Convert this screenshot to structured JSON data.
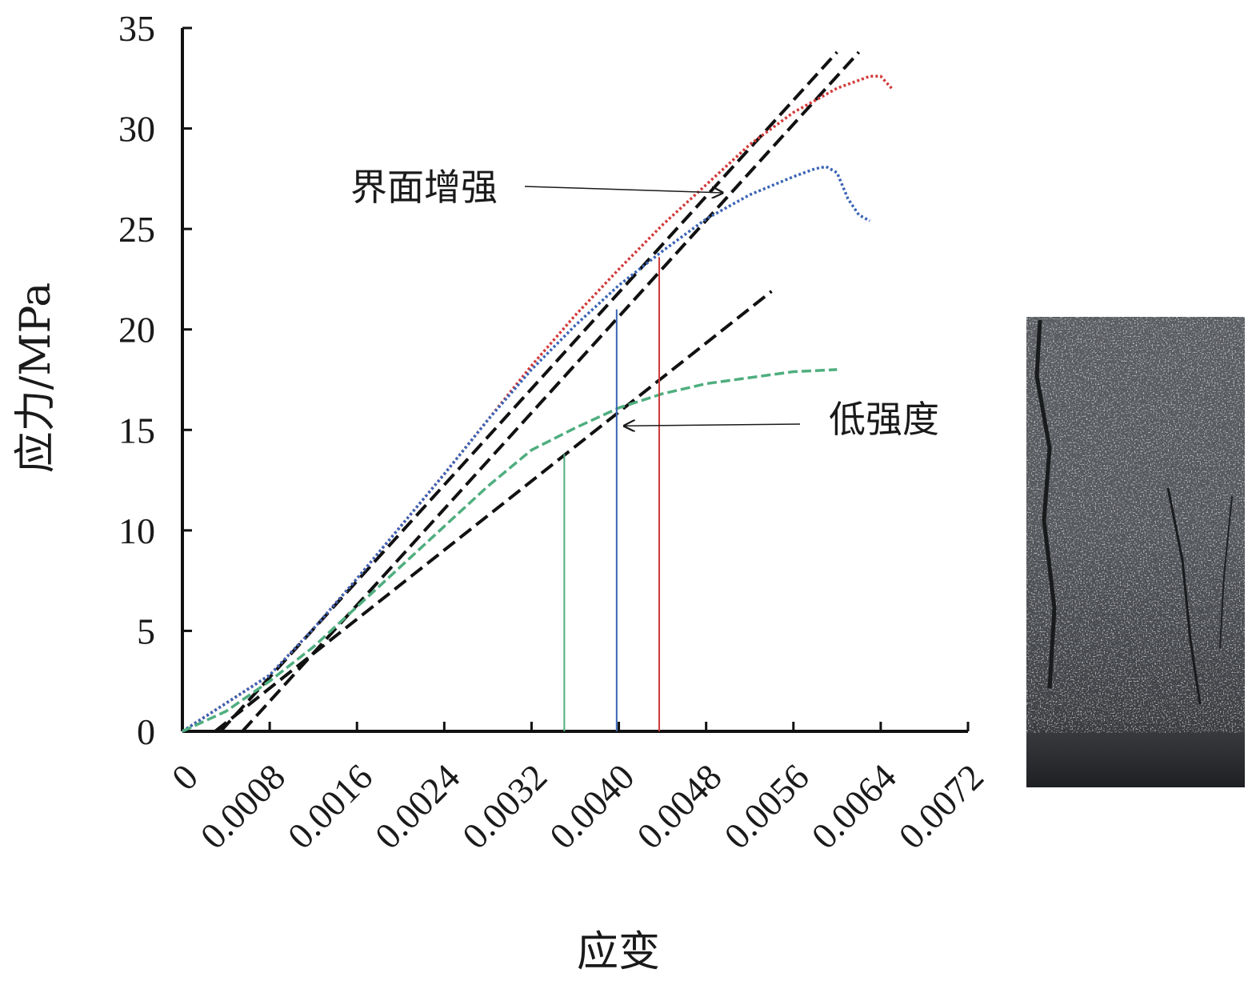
{
  "chart_data": {
    "type": "line",
    "title": "",
    "xlabel": "应变",
    "ylabel": "应力/MPa",
    "xlim": [
      0,
      0.0072
    ],
    "ylim": [
      0,
      35
    ],
    "xticks": [
      0,
      0.0008,
      0.0016,
      0.0024,
      0.0032,
      0.004,
      0.0048,
      0.0056,
      0.0064,
      0.0072
    ],
    "xtick_labels": [
      "0",
      "0.0008",
      "0.0016",
      "0.0024",
      "0.0032",
      "0.0040",
      "0.0048",
      "0.0056",
      "0.0064",
      "0.0072"
    ],
    "yticks": [
      0,
      5,
      10,
      15,
      20,
      25,
      30,
      35
    ],
    "ytick_labels": [
      "0",
      "5",
      "10",
      "15",
      "20",
      "25",
      "30",
      "35"
    ],
    "grid": false,
    "legend": "none",
    "series": [
      {
        "color": "#d23a3a",
        "style": "dotted",
        "x": [
          0,
          0.0004,
          0.0008,
          0.0012,
          0.0016,
          0.002,
          0.0024,
          0.0028,
          0.0032,
          0.0036,
          0.004,
          0.0044,
          0.0048,
          0.0052,
          0.0056,
          0.006,
          0.0063,
          0.0064,
          0.0065
        ],
        "y": [
          0,
          1.4,
          2.8,
          5.1,
          7.6,
          10.2,
          12.8,
          15.5,
          18.2,
          20.7,
          23.0,
          25.2,
          27.2,
          29.2,
          30.8,
          32.0,
          32.6,
          32.6,
          32.0
        ]
      },
      {
        "color": "#3a64b4",
        "style": "dotted",
        "x": [
          0,
          0.0004,
          0.0008,
          0.0012,
          0.0016,
          0.002,
          0.0024,
          0.0028,
          0.0032,
          0.0036,
          0.004,
          0.0044,
          0.0048,
          0.0052,
          0.0056,
          0.0058,
          0.0059,
          0.006,
          0.0061,
          0.0062,
          0.0063
        ],
        "y": [
          0,
          1.4,
          2.8,
          5.1,
          7.6,
          10.2,
          12.8,
          15.5,
          18.0,
          20.2,
          22.2,
          23.9,
          25.5,
          26.7,
          27.6,
          28.0,
          28.1,
          27.8,
          26.5,
          25.7,
          25.4
        ]
      },
      {
        "color": "#4fae7f",
        "style": "dashed",
        "x": [
          0,
          0.0004,
          0.0008,
          0.0012,
          0.0016,
          0.002,
          0.0024,
          0.0028,
          0.0032,
          0.0036,
          0.004,
          0.0044,
          0.0048,
          0.0052,
          0.0056,
          0.006
        ],
        "y": [
          0,
          1.0,
          2.5,
          4.2,
          6.2,
          8.2,
          10.2,
          12.2,
          14.0,
          15.1,
          16.1,
          16.8,
          17.3,
          17.6,
          17.9,
          18.0
        ]
      }
    ],
    "tangent_lines": [
      {
        "x": [
          0.00035,
          0.006
        ],
        "y": [
          0,
          33.8
        ]
      },
      {
        "x": [
          0.00055,
          0.0062
        ],
        "y": [
          0,
          33.8
        ]
      },
      {
        "x": [
          0.0003,
          0.0054
        ],
        "y": [
          0,
          21.9
        ]
      }
    ],
    "markers": [
      {
        "x": 0.0035,
        "y": 13.8,
        "color": "#4fae7f"
      },
      {
        "x": 0.00398,
        "y": 21.0,
        "color": "#3a64b4"
      },
      {
        "x": 0.00437,
        "y": 23.6,
        "color": "#d23a3a"
      }
    ],
    "annotations": [
      {
        "text": "界面增强",
        "arrow_to": [
          0.00495,
          26.8
        ]
      },
      {
        "text": "低强度",
        "arrow_to": [
          0.00405,
          15.2
        ]
      }
    ]
  },
  "photo": {
    "bg_color": "#4a4d52",
    "dark_color": "#1f2124"
  }
}
